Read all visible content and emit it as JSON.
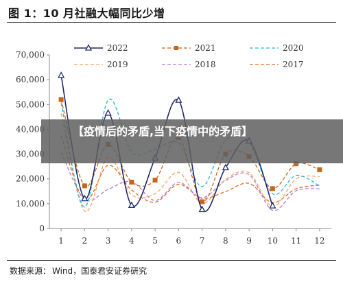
{
  "figure_title": "图 1：10 月社融大幅同比少增",
  "source": {
    "label": "数据来源：",
    "text": "Wind，国泰君安证券研究"
  },
  "overlay": {
    "headline": "【疫情后的矛盾,当下疫情中的矛盾】"
  },
  "chart_data": {
    "type": "line",
    "x": [
      1,
      2,
      3,
      4,
      5,
      6,
      7,
      8,
      9,
      10,
      11,
      12
    ],
    "ylim": [
      0,
      70000
    ],
    "yticks": [
      "0",
      "10,000",
      "20,000",
      "30,000",
      "40,000",
      "50,000",
      "60,000",
      "70,000"
    ],
    "legend_position": "top",
    "series": [
      {
        "name": "2022",
        "color": "#1f2a6b",
        "dash": "solid",
        "marker": "triangle",
        "values": [
          61700,
          12000,
          46500,
          9300,
          28400,
          51700,
          7600,
          24500,
          35300,
          9100,
          null,
          null
        ]
      },
      {
        "name": "2021",
        "color": "#c8651b",
        "dash": "dash",
        "marker": "square",
        "values": [
          52000,
          17200,
          33900,
          18700,
          19500,
          36700,
          10800,
          30000,
          29000,
          16100,
          26100,
          23700
        ]
      },
      {
        "name": "2020",
        "color": "#29b3d6",
        "dash": "dash",
        "values": [
          50600,
          8600,
          51800,
          31000,
          31900,
          34400,
          16900,
          35700,
          34800,
          14000,
          21400,
          17200
        ]
      },
      {
        "name": "2019",
        "color": "#f4a460",
        "dash": "dash",
        "values": [
          46400,
          7000,
          28600,
          13600,
          14000,
          22600,
          10100,
          19800,
          22500,
          8800,
          20000,
          21000
        ]
      },
      {
        "name": "2018",
        "color": "#b57bd4",
        "dash": "dash",
        "values": [
          30800,
          11800,
          15800,
          18900,
          11300,
          18600,
          12400,
          19400,
          21700,
          7300,
          15200,
          16000
        ]
      },
      {
        "name": "2017",
        "color": "#e06a1a",
        "dash": "dash",
        "values": [
          37400,
          11400,
          25500,
          15500,
          10600,
          17800,
          12200,
          14900,
          18200,
          10400,
          16000,
          17500
        ]
      }
    ]
  }
}
